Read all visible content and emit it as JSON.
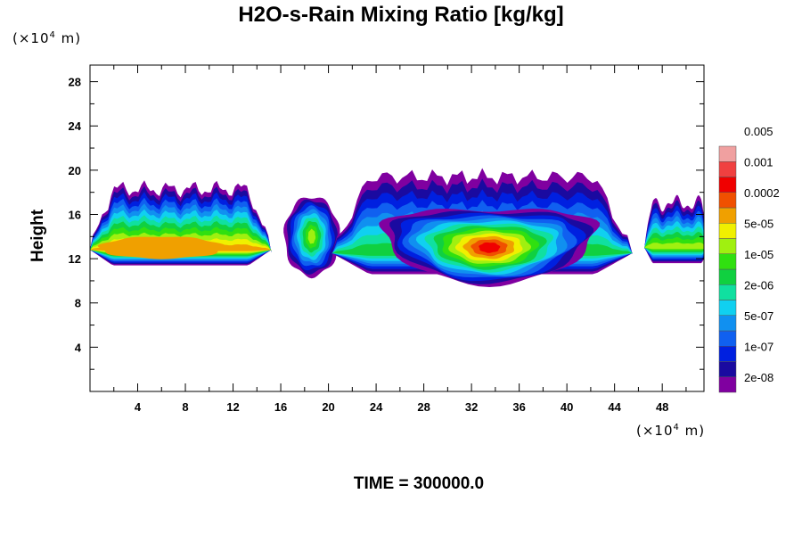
{
  "chart_data": {
    "type": "heatmap",
    "title": "H2O-s-Rain Mixing Ratio [kg/kg]",
    "ylabel": "Height",
    "y_unit_prefix": "(×10",
    "y_unit_exp": "4",
    "y_unit_suffix": " m)",
    "x_unit_prefix": "(×10",
    "x_unit_exp": "4",
    "x_unit_suffix": " m)",
    "time_label": "TIME = 300000.0",
    "xlim": [
      0,
      51.5
    ],
    "ylim": [
      0,
      29.5
    ],
    "x_ticks": [
      4,
      8,
      12,
      16,
      20,
      24,
      28,
      32,
      36,
      40,
      44,
      48
    ],
    "y_ticks": [
      4,
      8,
      12,
      16,
      20,
      24,
      28
    ],
    "colorbar": {
      "colors": [
        "#8000a0",
        "#1a0aa0",
        "#0020e0",
        "#1060f0",
        "#1090f0",
        "#10d0f0",
        "#10e0a0",
        "#10d040",
        "#30e010",
        "#a0f010",
        "#f0f000",
        "#f0a000",
        "#f05000",
        "#f00000",
        "#f04040",
        "#f0a0a0"
      ],
      "labels": [
        "2e-08",
        "1e-07",
        "5e-07",
        "2e-06",
        "1e-05",
        "5e-05",
        "0.0002",
        "0.001",
        "0.005"
      ]
    },
    "regions": [
      {
        "name": "band-left",
        "x_range": [
          0,
          15
        ],
        "core_x": [
          1,
          11
        ],
        "core_height": [
          12,
          14
        ],
        "max_level": "0.0002"
      },
      {
        "name": "cell-18",
        "x_range": [
          16.5,
          21
        ],
        "core_x": [
          17.5,
          19.5
        ],
        "core_height": [
          12,
          15
        ],
        "max_level": "5e-05"
      },
      {
        "name": "main-cell",
        "x_range": [
          20,
          45
        ],
        "core_x": [
          26,
          42
        ],
        "core_height": [
          11,
          14.5
        ],
        "max_level": "0.001"
      },
      {
        "name": "band-right",
        "x_range": [
          46,
          51.5
        ],
        "core_x": [
          49,
          51.5
        ],
        "core_height": [
          12,
          14
        ],
        "max_level": "5e-05"
      }
    ]
  }
}
